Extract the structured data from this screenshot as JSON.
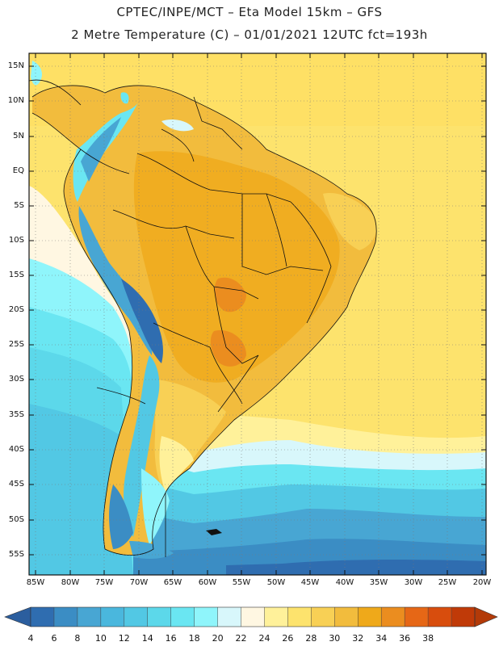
{
  "header": {
    "title_line1": "CPTEC/INPE/MCT –  Eta Model 15km – GFS",
    "title_line2": "2 Metre Temperature (C) – 01/01/2021 12UTC fct=193h"
  },
  "axes": {
    "lat_labels": [
      "15N",
      "10N",
      "5N",
      "EQ",
      "5S",
      "10S",
      "15S",
      "20S",
      "25S",
      "30S",
      "35S",
      "40S",
      "45S",
      "50S",
      "55S"
    ],
    "lon_labels": [
      "85W",
      "80W",
      "75W",
      "70W",
      "65W",
      "60W",
      "55W",
      "50W",
      "45W",
      "40W",
      "35W",
      "30W",
      "25W",
      "20W"
    ]
  },
  "colorbar": {
    "ticks": [
      "4",
      "6",
      "8",
      "10",
      "12",
      "14",
      "16",
      "18",
      "20",
      "22",
      "24",
      "26",
      "28",
      "30",
      "32",
      "34",
      "36",
      "38"
    ],
    "colors": [
      "#2f6db0",
      "#3b8dc4",
      "#48a6d3",
      "#4ab7dd",
      "#52c8e4",
      "#5cd8ea",
      "#6ae6f2",
      "#8ff5fb",
      "#d8f7fb",
      "#fff7e2",
      "#fff19a",
      "#fde36d",
      "#f8d055",
      "#f2bc3d",
      "#efa91a",
      "#eb8d1f",
      "#e66716",
      "#d84d0d",
      "#c03a08"
    ],
    "arrow_left_color": "#2b5e9e",
    "arrow_right_color": "#b33a08"
  },
  "map": {
    "ocean_color": "#fde36d",
    "land_hot_color": "#f2bc3d",
    "cold_ocean_color": "#2f6db0"
  }
}
